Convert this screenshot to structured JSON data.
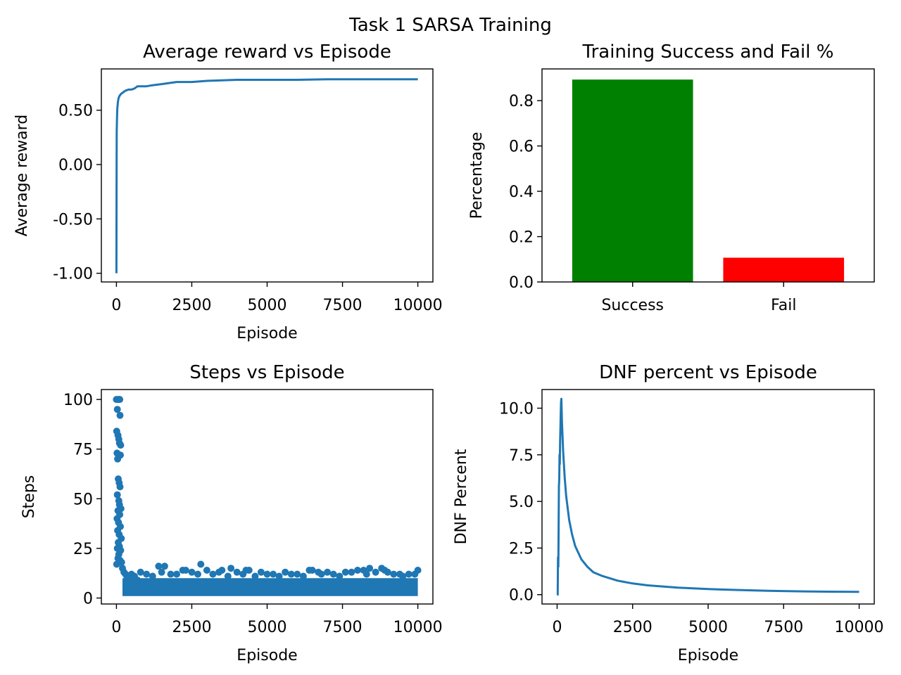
{
  "figure": {
    "title": "Task 1 SARSA Training"
  },
  "colors": {
    "line": "#1f77b4",
    "success": "#008000",
    "fail": "#ff0000"
  },
  "chart_data": [
    {
      "type": "line",
      "title": "Average reward vs Episode",
      "xlabel": "Episode",
      "ylabel": "Average reward",
      "xlim": [
        -500,
        10500
      ],
      "ylim": [
        -1.08,
        0.88
      ],
      "xticks": [
        0,
        2500,
        5000,
        7500,
        10000
      ],
      "xtick_labels": [
        "0",
        "2500",
        "5000",
        "7500",
        "10000"
      ],
      "yticks": [
        -1.0,
        -0.5,
        0.0,
        0.5
      ],
      "ytick_labels": [
        "-1.00",
        "-0.50",
        "0.00",
        "0.50"
      ],
      "series": [
        {
          "x": [
            0,
            5,
            10,
            20,
            30,
            50,
            70,
            100,
            150,
            200,
            300,
            400,
            500,
            600,
            700,
            800,
            1000,
            1200,
            1500,
            2000,
            2500,
            3000,
            3500,
            4000,
            5000,
            6000,
            7000,
            8000,
            9000,
            10000
          ],
          "y": [
            -1.0,
            -0.2,
            0.3,
            0.45,
            0.52,
            0.58,
            0.61,
            0.63,
            0.65,
            0.66,
            0.68,
            0.69,
            0.69,
            0.7,
            0.72,
            0.72,
            0.72,
            0.73,
            0.74,
            0.76,
            0.76,
            0.77,
            0.775,
            0.78,
            0.78,
            0.78,
            0.785,
            0.785,
            0.785,
            0.785
          ]
        }
      ]
    },
    {
      "type": "bar",
      "title": "Training Success and Fail %",
      "xlabel": "",
      "ylabel": "Percentage",
      "categories": [
        "Success",
        "Fail"
      ],
      "values": [
        0.893,
        0.107
      ],
      "ylim": [
        0,
        0.94
      ],
      "yticks": [
        0.0,
        0.2,
        0.4,
        0.6,
        0.8
      ],
      "ytick_labels": [
        "0.0",
        "0.2",
        "0.4",
        "0.6",
        "0.8"
      ]
    },
    {
      "type": "scatter",
      "title": "Steps vs Episode",
      "xlabel": "Episode",
      "ylabel": "Steps",
      "xlim": [
        -500,
        10500
      ],
      "ylim": [
        -3,
        105
      ],
      "xticks": [
        0,
        2500,
        5000,
        7500,
        10000
      ],
      "xtick_labels": [
        "0",
        "2500",
        "5000",
        "7500",
        "10000"
      ],
      "yticks": [
        0,
        25,
        50,
        75,
        100
      ],
      "ytick_labels": [
        "0",
        "25",
        "50",
        "75",
        "100"
      ],
      "points": [
        [
          0,
          100
        ],
        [
          30,
          95
        ],
        [
          60,
          100
        ],
        [
          90,
          100
        ],
        [
          110,
          100
        ],
        [
          120,
          92
        ],
        [
          10,
          84
        ],
        [
          50,
          82
        ],
        [
          80,
          80
        ],
        [
          100,
          78
        ],
        [
          140,
          77
        ],
        [
          20,
          73
        ],
        [
          70,
          72
        ],
        [
          130,
          72
        ],
        [
          40,
          70
        ],
        [
          60,
          60
        ],
        [
          90,
          58
        ],
        [
          120,
          56
        ],
        [
          30,
          52
        ],
        [
          80,
          49
        ],
        [
          100,
          47
        ],
        [
          150,
          45
        ],
        [
          50,
          44
        ],
        [
          110,
          42
        ],
        [
          20,
          40
        ],
        [
          70,
          38
        ],
        [
          130,
          36
        ],
        [
          40,
          34
        ],
        [
          90,
          32
        ],
        [
          160,
          30
        ],
        [
          60,
          28
        ],
        [
          100,
          26
        ],
        [
          30,
          25
        ],
        [
          140,
          24
        ],
        [
          80,
          22
        ],
        [
          50,
          20
        ],
        [
          120,
          19
        ],
        [
          170,
          18
        ],
        [
          10,
          17
        ],
        [
          200,
          15
        ],
        [
          250,
          13
        ],
        [
          300,
          12
        ],
        [
          350,
          11
        ],
        [
          400,
          10
        ],
        [
          500,
          12
        ],
        [
          600,
          11
        ],
        [
          700,
          9
        ],
        [
          800,
          13
        ],
        [
          1000,
          12
        ],
        [
          1200,
          11
        ],
        [
          1400,
          16
        ],
        [
          1500,
          13
        ],
        [
          1600,
          16
        ],
        [
          1800,
          12
        ],
        [
          2000,
          12
        ],
        [
          2200,
          14
        ],
        [
          2300,
          14
        ],
        [
          2500,
          13
        ],
        [
          2700,
          12
        ],
        [
          2800,
          17
        ],
        [
          3000,
          14
        ],
        [
          3200,
          12
        ],
        [
          3400,
          13
        ],
        [
          3500,
          14
        ],
        [
          3700,
          11
        ],
        [
          3800,
          15
        ],
        [
          4000,
          13
        ],
        [
          4200,
          12
        ],
        [
          4300,
          14
        ],
        [
          4400,
          14
        ],
        [
          4600,
          11
        ],
        [
          4800,
          13
        ],
        [
          5000,
          12
        ],
        [
          5200,
          12
        ],
        [
          5400,
          11
        ],
        [
          5600,
          13
        ],
        [
          5800,
          12
        ],
        [
          6000,
          12
        ],
        [
          6200,
          11
        ],
        [
          6400,
          14
        ],
        [
          6500,
          14
        ],
        [
          6700,
          13
        ],
        [
          6800,
          12
        ],
        [
          7000,
          13
        ],
        [
          7200,
          12
        ],
        [
          7400,
          11
        ],
        [
          7600,
          13
        ],
        [
          7800,
          13
        ],
        [
          8000,
          14
        ],
        [
          8200,
          14
        ],
        [
          8300,
          12
        ],
        [
          8400,
          15
        ],
        [
          8600,
          13
        ],
        [
          8800,
          15
        ],
        [
          8900,
          14
        ],
        [
          9000,
          13
        ],
        [
          9200,
          12
        ],
        [
          9400,
          12
        ],
        [
          9500,
          11
        ],
        [
          9700,
          12
        ],
        [
          9900,
          12
        ],
        [
          10000,
          14
        ]
      ]
    },
    {
      "type": "line",
      "title": "DNF percent vs Episode",
      "xlabel": "Episode",
      "ylabel": "DNF Percent",
      "xlim": [
        -500,
        10500
      ],
      "ylim": [
        -0.5,
        11.0
      ],
      "xticks": [
        0,
        2500,
        5000,
        7500,
        10000
      ],
      "xtick_labels": [
        "0",
        "2500",
        "5000",
        "7500",
        "10000"
      ],
      "yticks": [
        0.0,
        2.5,
        5.0,
        7.5,
        10.0
      ],
      "ytick_labels": [
        "0.0",
        "2.5",
        "5.0",
        "7.5",
        "10.0"
      ],
      "series": [
        {
          "x": [
            0,
            20,
            30,
            40,
            50,
            60,
            70,
            80,
            90,
            100,
            110,
            120,
            130,
            140,
            160,
            200,
            250,
            300,
            400,
            500,
            600,
            800,
            1000,
            1200,
            1500,
            2000,
            2500,
            3000,
            4000,
            5000,
            6000,
            7000,
            8000,
            9000,
            10000
          ],
          "y": [
            0.0,
            0.0,
            2.0,
            1.5,
            3.5,
            5.8,
            6.2,
            7.5,
            7.0,
            8.2,
            9.0,
            9.7,
            10.3,
            10.5,
            9.3,
            7.7,
            6.3,
            5.3,
            4.0,
            3.2,
            2.6,
            1.9,
            1.5,
            1.2,
            1.0,
            0.75,
            0.6,
            0.5,
            0.38,
            0.3,
            0.25,
            0.21,
            0.18,
            0.16,
            0.15
          ]
        }
      ]
    }
  ]
}
